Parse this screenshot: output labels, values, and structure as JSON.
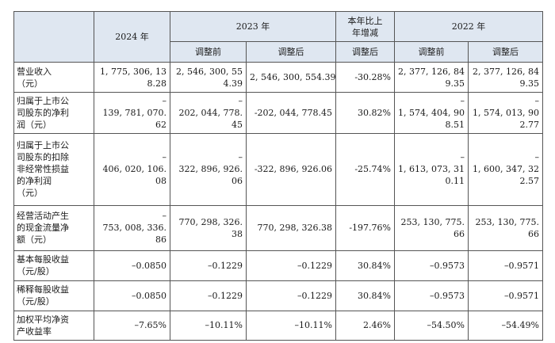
{
  "headers": {
    "y2024": "2024 年",
    "y2023": "2023 年",
    "change": "本年比上\n年增减",
    "y2022": "2022 年",
    "sub_before": "调整前",
    "sub_after": "调整后",
    "sub_change": "调整后"
  },
  "rows": [
    {
      "label": "营业收入\n（元）",
      "v2024": "1, 775, 306, 13\n8.28",
      "v2023_before": "2, 546, 300, 55\n4.39",
      "v2023_after": "2, 546, 300, 554.39",
      "change": "-30.28%",
      "v2022_before": "2, 377, 126, 84\n9.35",
      "v2022_after": "2, 377, 126, 84\n9.35"
    },
    {
      "label": "归属于上市公\n司股东的净利\n润（元）",
      "v2024": "–\n139, 781, 070.\n62",
      "v2023_before": "–\n202, 044, 778.\n45",
      "v2023_after": "-202, 044, 778.45",
      "change": "30.82%",
      "v2022_before": "–\n1, 574, 404, 90\n8.51",
      "v2022_after": "–\n1, 574, 013, 90\n2.77"
    },
    {
      "label": "归属于上市公\n司股东的扣除\n非经常性损益\n的净利润\n（元）",
      "v2024": "–\n406, 020, 106.\n08",
      "v2023_before": "–\n322, 896, 926.\n06",
      "v2023_after": "-322, 896, 926.06",
      "change": "-25.74%",
      "v2022_before": "–\n1, 613, 073, 31\n0.11",
      "v2022_after": "–\n1, 600, 347, 32\n2.57"
    },
    {
      "label": "经营活动产生\n的现金流量净\n额（元）",
      "v2024": "–\n753, 008, 336.\n86",
      "v2023_before": "770, 298, 326.\n38",
      "v2023_after": "770, 298, 326.38",
      "change": "-197.76%",
      "v2022_before": "253, 130, 775.\n66",
      "v2022_after": "253, 130, 775.\n66"
    },
    {
      "label": "基本每股收益\n（元/股）",
      "v2024": "–0.0850",
      "v2023_before": "–0.1229",
      "v2023_after": "–0.1229",
      "change": "30.84%",
      "v2022_before": "–0.9573",
      "v2022_after": "–0.9571"
    },
    {
      "label": "稀释每股收益\n（元/股）",
      "v2024": "–0.0850",
      "v2023_before": "–0.1229",
      "v2023_after": "–0.1229",
      "change": "30.84%",
      "v2022_before": "–0.9573",
      "v2022_after": "–0.9571"
    },
    {
      "label": "加权平均净资\n产收益率",
      "v2024": "–7.65%",
      "v2023_before": "–10.11%",
      "v2023_after": "–10.11%",
      "change": "2.46%",
      "v2022_before": "–54.50%",
      "v2022_after": "–54.49%"
    }
  ]
}
